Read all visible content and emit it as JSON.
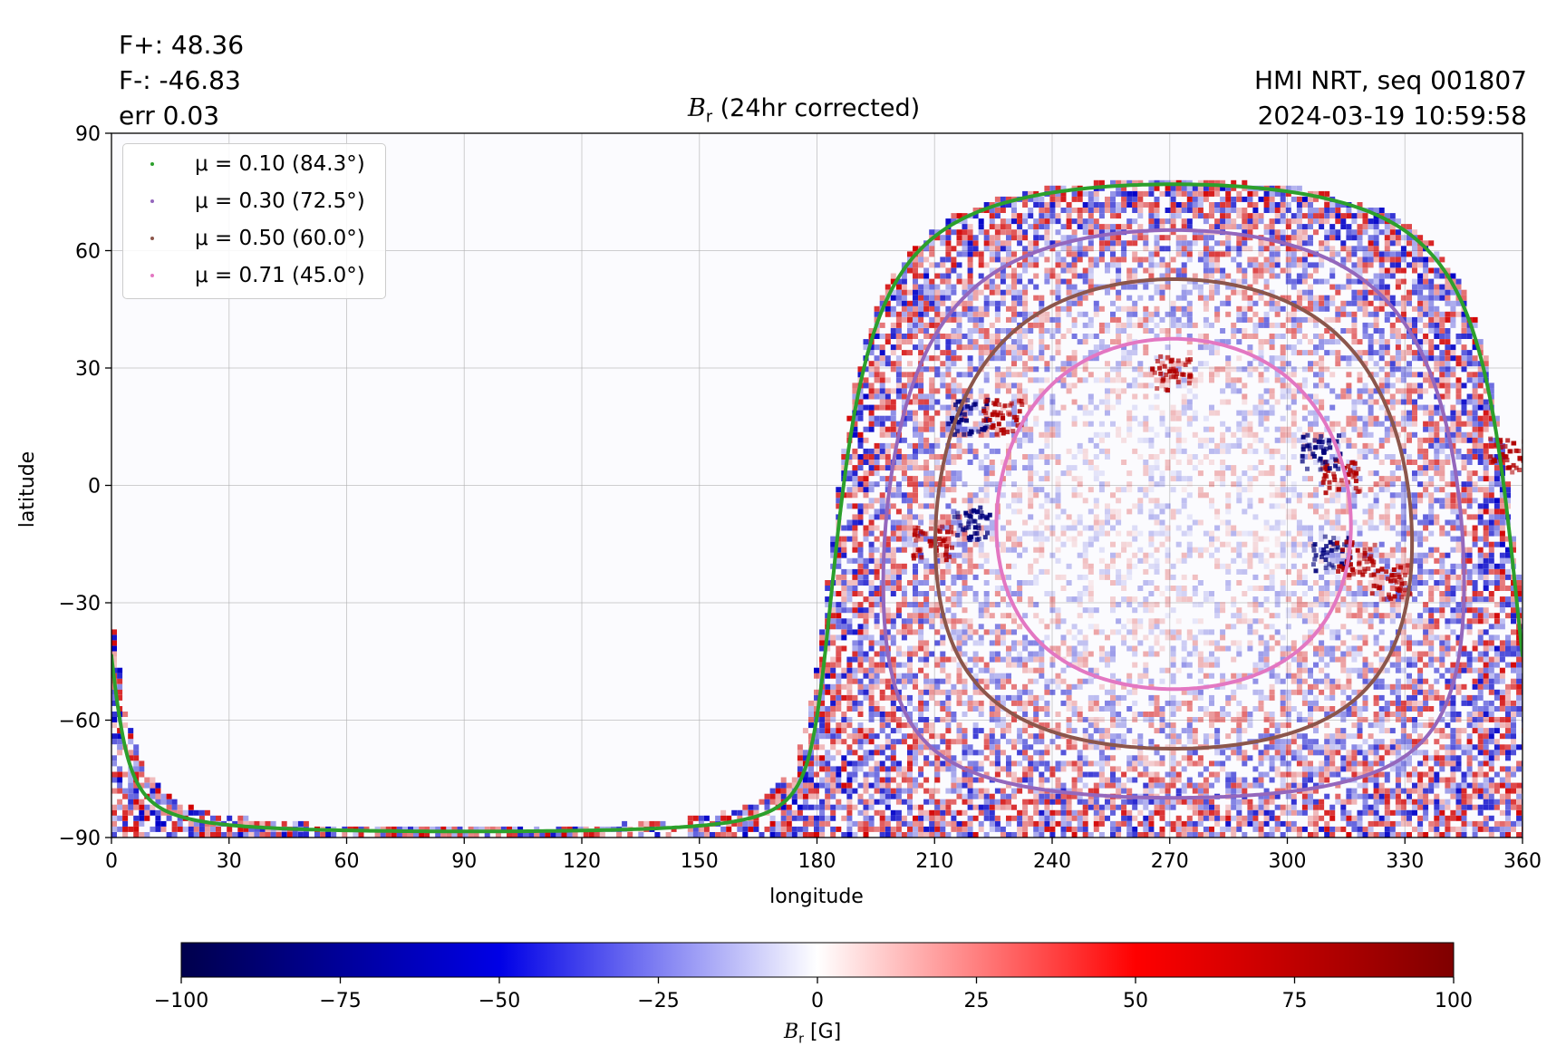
{
  "header": {
    "flux_plus": "F+: 48.36",
    "flux_minus": "F-: -46.83",
    "error": "err 0.03",
    "instrument": "HMI NRT, seq 001807",
    "timestamp": "2024-03-19 10:59:58"
  },
  "chart_data": {
    "type": "heatmap",
    "title": "B_r (24hr corrected)",
    "title_main": "B",
    "title_sub": "r",
    "title_rest": " (24hr corrected)",
    "xlabel": "longitude",
    "ylabel": "latitude",
    "xlim": [
      0,
      360
    ],
    "ylim": [
      -90,
      90
    ],
    "xticks": [
      0,
      30,
      60,
      90,
      120,
      150,
      180,
      210,
      240,
      270,
      300,
      330,
      360
    ],
    "yticks": [
      -90,
      -60,
      -30,
      0,
      30,
      60,
      90
    ],
    "ytick_labels": [
      "−90",
      "−60",
      "−30",
      "0",
      "30",
      "60",
      "90"
    ],
    "grid": true,
    "legend_position": "top-left",
    "disk_center": {
      "lon": 271,
      "lat": -7.3
    },
    "colormap": "seismic",
    "series": [
      {
        "name": "μ = 0.10 (84.3°)",
        "mu": 0.1,
        "angle_deg": 84.3,
        "color": "#2ca02c"
      },
      {
        "name": "μ = 0.30 (72.5°)",
        "mu": 0.3,
        "angle_deg": 72.5,
        "color": "#9467bd"
      },
      {
        "name": "μ = 0.50 (60.0°)",
        "mu": 0.5,
        "angle_deg": 60.0,
        "color": "#8c564b"
      },
      {
        "name": "μ = 0.71 (45.0°)",
        "mu": 0.71,
        "angle_deg": 45.0,
        "color": "#e377c2"
      }
    ],
    "active_regions": [
      {
        "lon": 218,
        "lat": 18,
        "polarity": "negative"
      },
      {
        "lon": 227,
        "lat": 18,
        "polarity": "positive"
      },
      {
        "lon": 209,
        "lat": -14,
        "polarity": "positive"
      },
      {
        "lon": 219,
        "lat": -9,
        "polarity": "negative"
      },
      {
        "lon": 311,
        "lat": -17,
        "polarity": "negative"
      },
      {
        "lon": 317,
        "lat": -18,
        "polarity": "positive"
      },
      {
        "lon": 326,
        "lat": -24,
        "polarity": "positive"
      },
      {
        "lon": 313,
        "lat": 3,
        "polarity": "positive"
      },
      {
        "lon": 308,
        "lat": 9,
        "polarity": "negative"
      },
      {
        "lon": 270,
        "lat": 29,
        "polarity": "positive"
      },
      {
        "lon": 356,
        "lat": 8,
        "polarity": "positive"
      }
    ],
    "colorbar": {
      "range": [
        -100,
        100
      ],
      "ticks": [
        -100,
        -75,
        -50,
        -25,
        0,
        25,
        50,
        75,
        100
      ],
      "tick_labels": [
        "−100",
        "−75",
        "−50",
        "−25",
        "0",
        "25",
        "50",
        "75",
        "100"
      ],
      "label": "B_r [G]",
      "label_main": "B",
      "label_sub": "r",
      "label_rest": " [G]"
    }
  }
}
